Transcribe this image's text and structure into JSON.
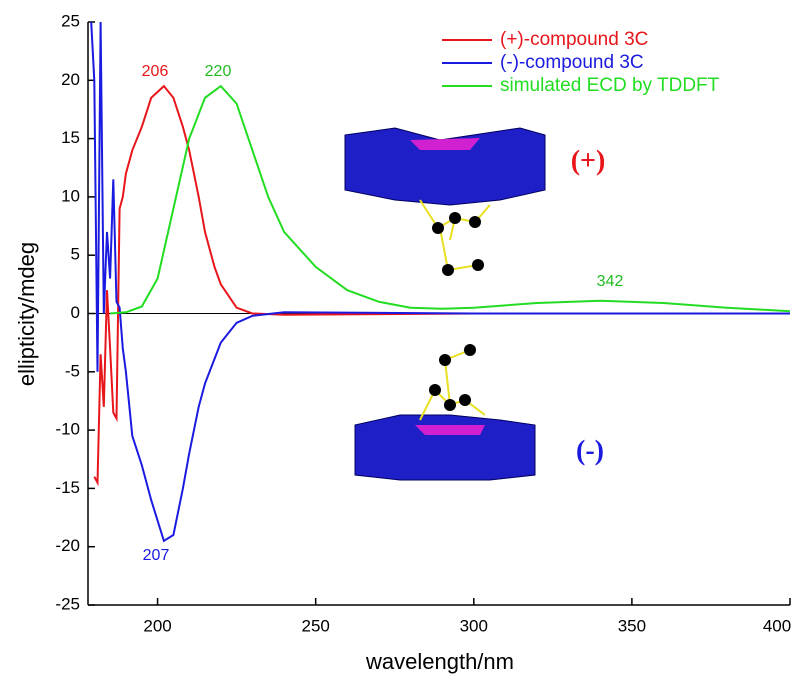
{
  "chart_data": {
    "type": "line",
    "xlabel": "wavelength/nm",
    "ylabel": "ellipticity/mdeg",
    "xlim": [
      178,
      400
    ],
    "ylim": [
      -25,
      25
    ],
    "xticks": [
      200,
      250,
      300,
      350,
      400
    ],
    "yticks": [
      -25,
      -20,
      -15,
      -10,
      -5,
      0,
      5,
      10,
      15,
      20,
      25
    ],
    "series": [
      {
        "name": "(+)-compound 3C",
        "color": "#e8161b",
        "x": [
          180,
          181,
          182,
          183,
          184,
          185,
          186,
          187,
          188,
          189,
          190,
          192,
          195,
          198,
          202,
          205,
          208,
          210,
          213,
          215,
          218,
          220,
          225,
          230,
          240,
          300,
          400
        ],
        "values": [
          -14,
          -14.5,
          -3.5,
          -8,
          2,
          -3,
          -8.5,
          -9,
          9,
          10,
          12,
          14,
          16,
          18.5,
          19.5,
          18.5,
          16,
          14,
          10,
          7,
          4,
          2.5,
          0.5,
          0,
          -0.1,
          0,
          0
        ]
      },
      {
        "name": "(-)-compound 3C",
        "color": "#1a1ae0",
        "x": [
          179,
          180,
          181,
          182,
          183,
          184,
          185,
          186,
          187,
          188,
          189,
          190,
          192,
          195,
          198,
          202,
          205,
          208,
          210,
          213,
          215,
          220,
          225,
          230,
          240,
          300,
          400
        ],
        "values": [
          25,
          20,
          -5,
          25,
          0,
          7,
          3,
          11.5,
          1,
          0.5,
          -3,
          -5,
          -10.5,
          -13,
          -16,
          -19.5,
          -19,
          -15,
          -12,
          -8,
          -6,
          -2.5,
          -0.8,
          -0.2,
          0.1,
          0,
          0
        ]
      },
      {
        "name": "simulated ECD by TDDFT",
        "color": "#22dd22",
        "x": [
          185,
          190,
          195,
          200,
          205,
          210,
          215,
          220,
          225,
          230,
          235,
          240,
          250,
          260,
          270,
          280,
          290,
          300,
          320,
          340,
          360,
          380,
          400
        ],
        "values": [
          0,
          0.1,
          0.6,
          3,
          9,
          15,
          18.5,
          19.5,
          18,
          14,
          10,
          7,
          4,
          2,
          1,
          0.5,
          0.4,
          0.5,
          0.9,
          1.1,
          0.9,
          0.5,
          0.2
        ]
      }
    ],
    "annotations": [
      "206",
      "207",
      "220",
      "342",
      "(+)",
      "(-)"
    ]
  }
}
